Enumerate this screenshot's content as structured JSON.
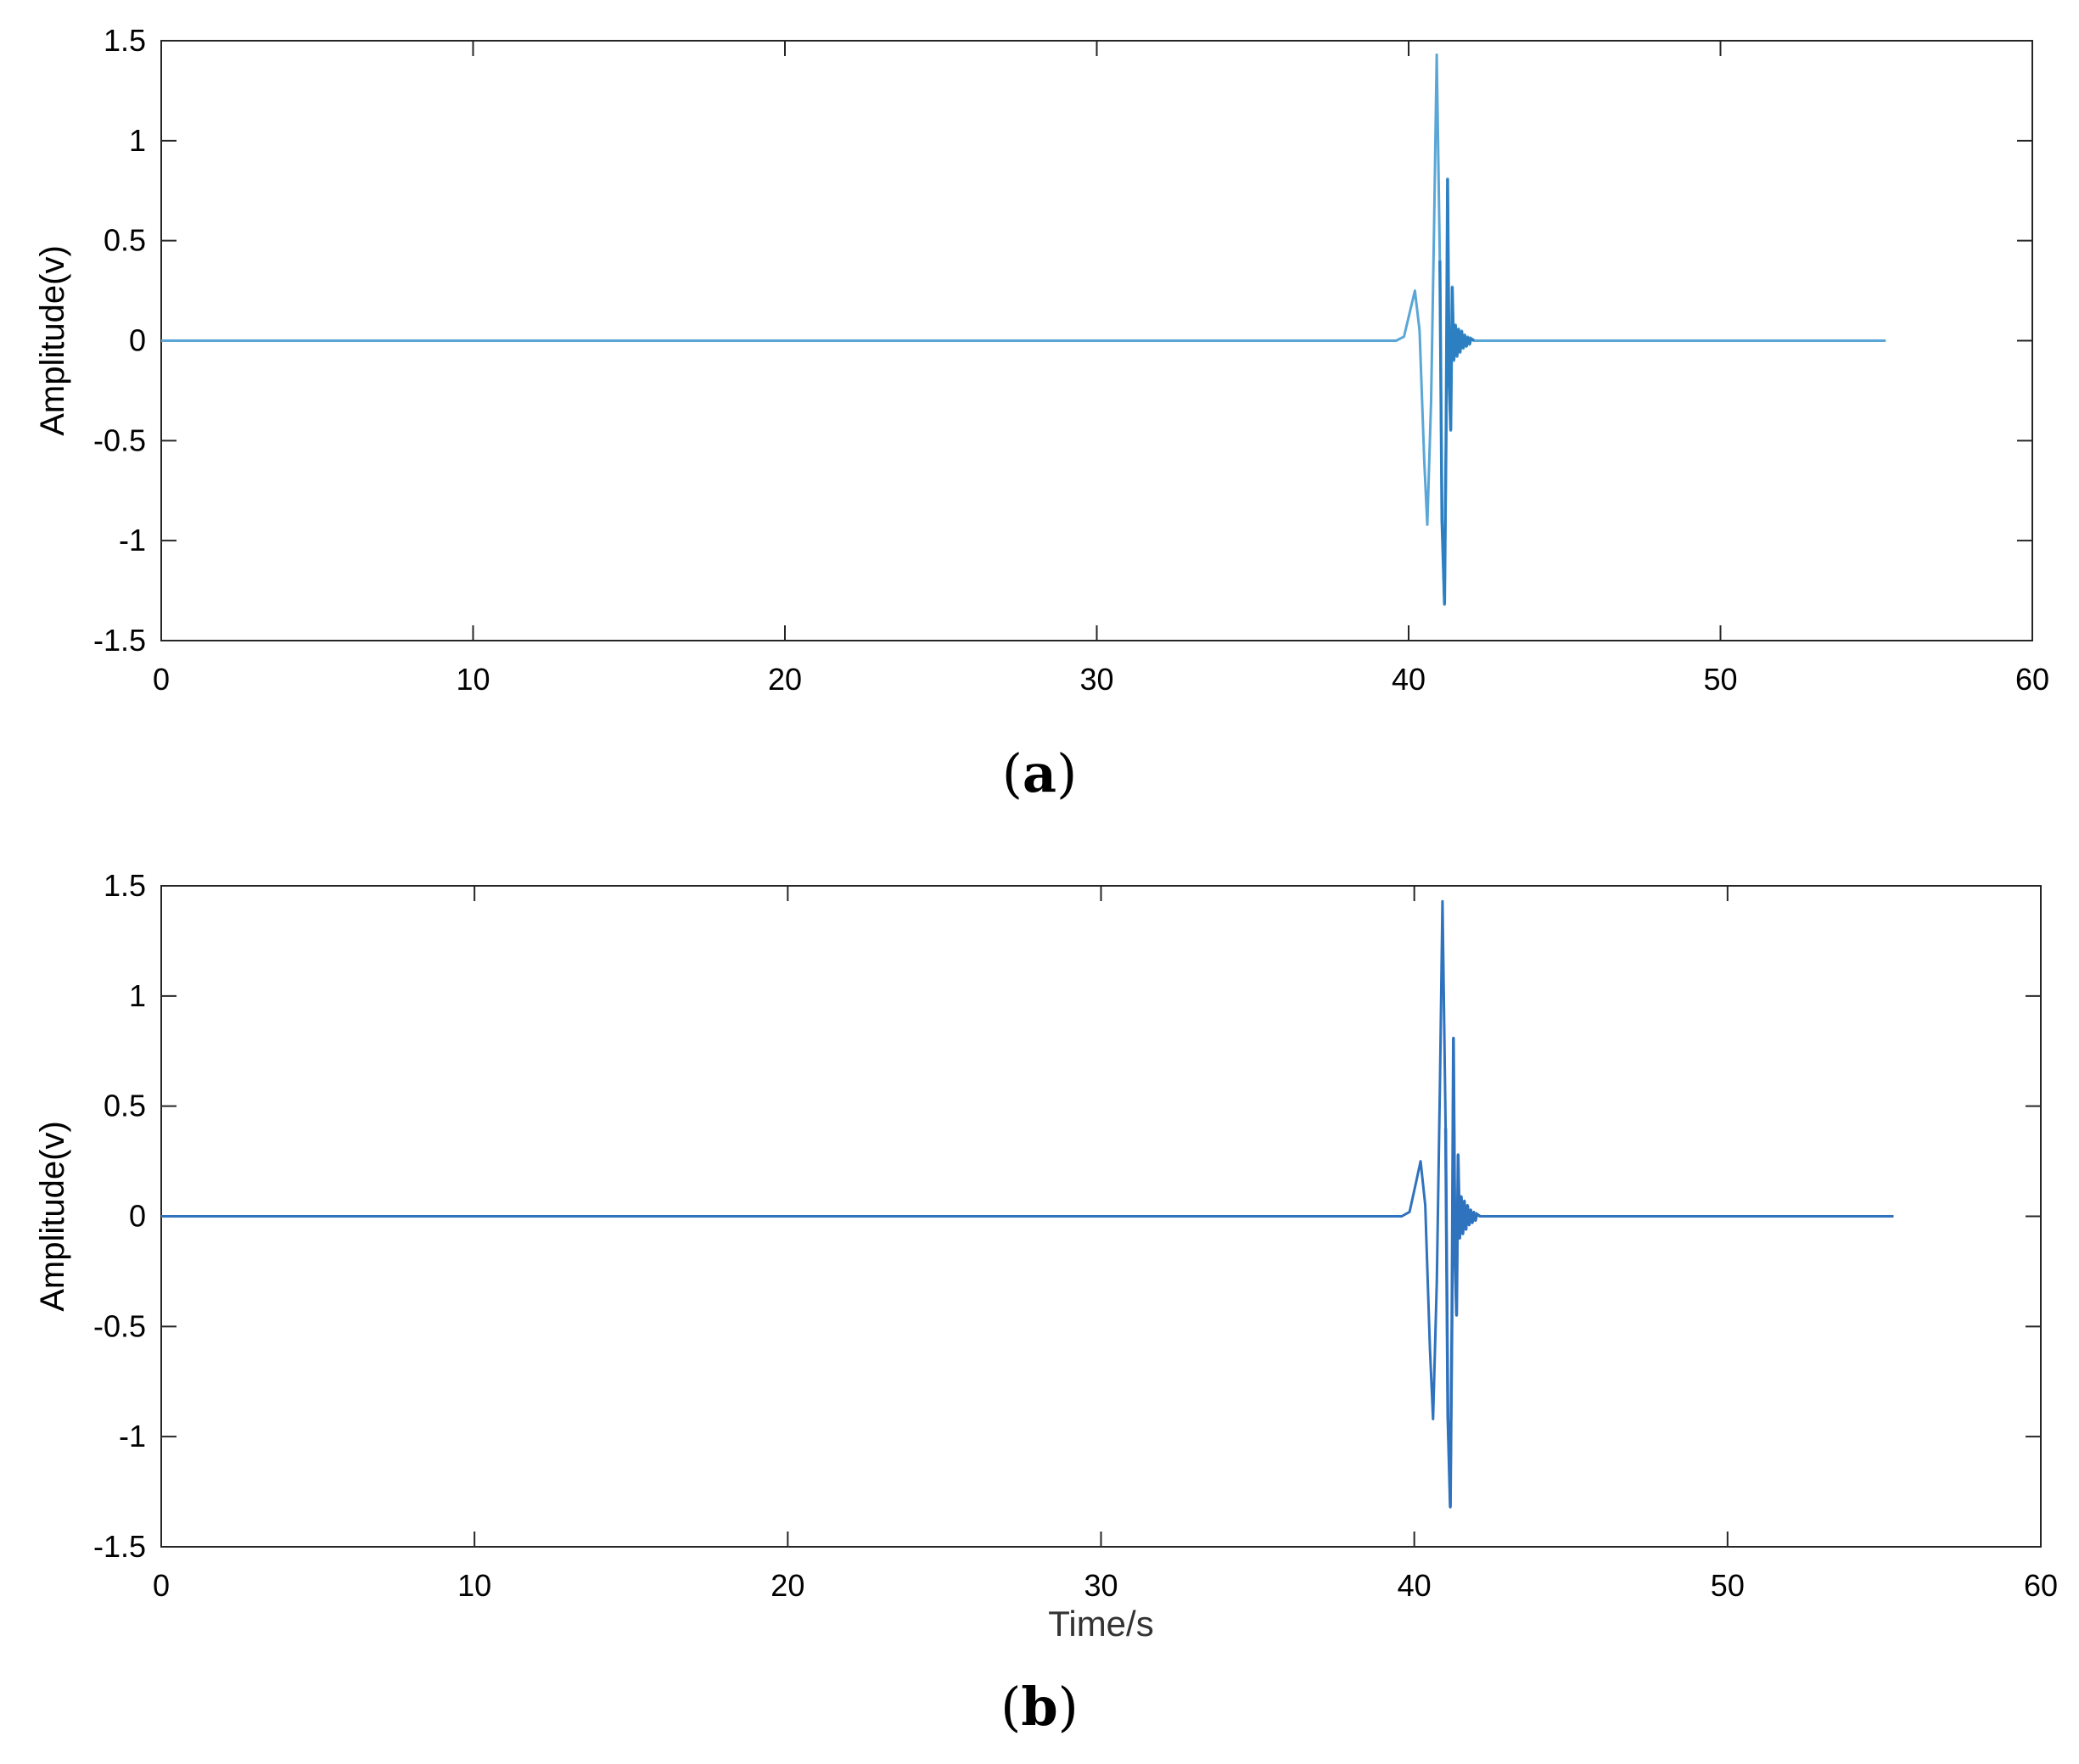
{
  "colors": {
    "series_a": "#5aa6d6",
    "series_a_dark": "#2c7fc1",
    "series_b": "#2f72bd",
    "axis": "#262626",
    "grid_box": "#262626"
  },
  "panels": [
    {
      "id": "a",
      "caption_letter": "a"
    },
    {
      "id": "b",
      "caption_letter": "b"
    }
  ],
  "chart_data": [
    {
      "type": "line",
      "panel": "a",
      "title": "",
      "xlabel": "",
      "ylabel": "Amplitude(v)",
      "xlim": [
        0,
        60
      ],
      "ylim": [
        -1.5,
        1.5
      ],
      "xticks": [
        0,
        10,
        20,
        30,
        40,
        50,
        60
      ],
      "xtick_labels": [
        "0",
        "10",
        "20",
        "30",
        "40",
        "50",
        "60"
      ],
      "yticks": [
        1.5,
        1,
        0.5,
        0,
        -0.5,
        -1,
        -1.5
      ],
      "ytick_labels": [
        "1.5",
        "1",
        "0.5",
        "0",
        "-0.5",
        "-1",
        "-1.5"
      ],
      "grid": false,
      "series": [
        {
          "x": [
            0,
            39.6,
            39.85,
            40.05,
            40.2,
            40.35,
            40.5,
            40.6,
            40.72,
            40.82,
            40.9,
            41.0,
            41.07,
            41.15,
            41.2,
            41.25,
            41.3,
            41.35,
            41.4,
            41.45,
            41.5,
            41.55,
            41.6,
            41.65,
            41.7,
            41.75,
            41.8,
            41.85,
            41.9,
            41.95,
            42.0,
            42.1,
            42.3,
            55.3
          ],
          "y": [
            0,
            0,
            0.02,
            0.15,
            0.25,
            0.05,
            -0.6,
            -0.92,
            -0.3,
            0.6,
            1.43,
            0.4,
            -0.9,
            -1.32,
            -0.5,
            0.81,
            -0.2,
            -0.45,
            0.27,
            -0.1,
            0.08,
            -0.08,
            0.06,
            -0.06,
            0.05,
            -0.04,
            0.03,
            -0.03,
            0.02,
            -0.02,
            0.01,
            0,
            0,
            0
          ]
        }
      ]
    },
    {
      "type": "line",
      "panel": "b",
      "title": "",
      "xlabel": "Time/s",
      "ylabel": "Amplitude(v)",
      "xlim": [
        0,
        60
      ],
      "ylim": [
        -1.5,
        1.5
      ],
      "xticks": [
        0,
        10,
        20,
        30,
        40,
        50,
        60
      ],
      "xtick_labels": [
        "0",
        "10",
        "20",
        "30",
        "40",
        "50",
        "60"
      ],
      "yticks": [
        1.5,
        1,
        0.5,
        0,
        -0.5,
        -1,
        -1.5
      ],
      "ytick_labels": [
        "1.5",
        "1",
        "0.5",
        "0",
        "-0.5",
        "-1",
        "-1.5"
      ],
      "grid": false,
      "series": [
        {
          "x": [
            0,
            39.6,
            39.85,
            40.05,
            40.2,
            40.35,
            40.5,
            40.6,
            40.72,
            40.82,
            40.9,
            41.0,
            41.07,
            41.15,
            41.2,
            41.25,
            41.3,
            41.35,
            41.4,
            41.45,
            41.5,
            41.55,
            41.6,
            41.65,
            41.7,
            41.75,
            41.8,
            41.85,
            41.9,
            41.95,
            42.0,
            42.1,
            42.3,
            55.3
          ],
          "y": [
            0,
            0,
            0.02,
            0.15,
            0.25,
            0.05,
            -0.6,
            -0.92,
            -0.3,
            0.6,
            1.43,
            0.4,
            -0.9,
            -1.32,
            -0.5,
            0.81,
            -0.2,
            -0.45,
            0.28,
            -0.1,
            0.09,
            -0.08,
            0.07,
            -0.06,
            0.05,
            -0.04,
            0.03,
            -0.03,
            0.02,
            -0.02,
            0.01,
            0,
            0,
            0
          ]
        }
      ]
    }
  ]
}
